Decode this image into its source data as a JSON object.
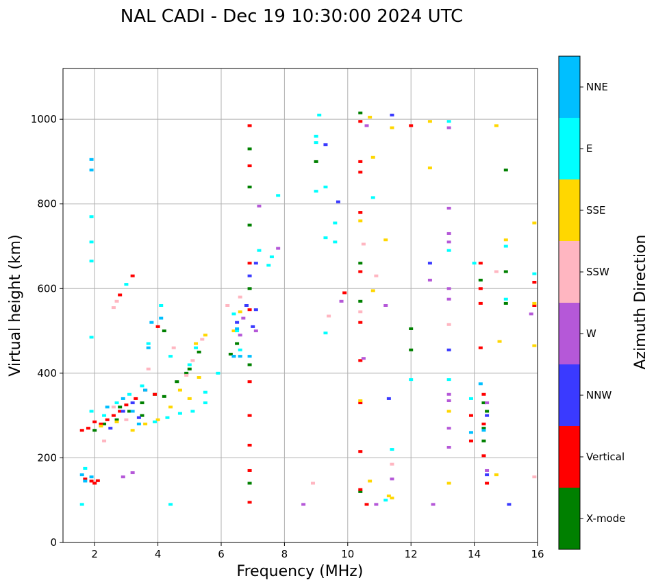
{
  "chart_data": {
    "type": "scatter",
    "title": "NAL CADI - Dec 19 10:30:00 2024 UTC",
    "xlabel": "Frequency (MHz)",
    "ylabel": "Virtual height (km)",
    "xlim": [
      1,
      16
    ],
    "ylim": [
      0,
      1120
    ],
    "xticks": [
      2,
      4,
      6,
      8,
      10,
      12,
      14,
      16
    ],
    "yticks": [
      0,
      200,
      400,
      600,
      800,
      1000
    ],
    "grid": true,
    "colorbar": {
      "label": "Azimuth Direction",
      "categories": [
        {
          "name": "X-mode",
          "color": "#008000"
        },
        {
          "name": "Vertical",
          "color": "#ff0000"
        },
        {
          "name": "NNW",
          "color": "#3a3aff"
        },
        {
          "name": "W",
          "color": "#b558d8"
        },
        {
          "name": "SSW",
          "color": "#ffb6c1"
        },
        {
          "name": "SSE",
          "color": "#ffd700"
        },
        {
          "name": "E",
          "color": "#00ffff"
        },
        {
          "name": "NNE",
          "color": "#00bfff"
        }
      ]
    },
    "series": [
      {
        "name": "X-mode",
        "points": [
          [
            2.7,
            290
          ],
          [
            3.1,
            310
          ],
          [
            3.5,
            330
          ],
          [
            3.9,
            350
          ],
          [
            4.2,
            345
          ],
          [
            4.6,
            380
          ],
          [
            5.0,
            410
          ],
          [
            5.3,
            450
          ],
          [
            2.3,
            280
          ],
          [
            6.3,
            445
          ],
          [
            6.5,
            470
          ],
          [
            6.9,
            840
          ],
          [
            6.9,
            750
          ],
          [
            6.9,
            600
          ],
          [
            6.9,
            420
          ],
          [
            10.4,
            570
          ],
          [
            10.4,
            660
          ],
          [
            10.4,
            120
          ],
          [
            10.4,
            1015
          ],
          [
            9.0,
            900
          ],
          [
            12.0,
            505
          ],
          [
            12.0,
            455
          ],
          [
            14.2,
            620
          ],
          [
            14.3,
            270
          ],
          [
            14.3,
            240
          ],
          [
            14.3,
            330
          ],
          [
            14.4,
            310
          ],
          [
            15.0,
            880
          ],
          [
            15.0,
            565
          ],
          [
            15.0,
            640
          ],
          [
            4.2,
            500
          ],
          [
            3.5,
            300
          ],
          [
            6.9,
            140
          ],
          [
            6.9,
            930
          ],
          [
            2.0,
            265
          ],
          [
            2.8,
            320
          ],
          [
            4.9,
            400
          ]
        ]
      },
      {
        "name": "Vertical",
        "points": [
          [
            1.6,
            265
          ],
          [
            1.8,
            270
          ],
          [
            2.0,
            285
          ],
          [
            2.2,
            280
          ],
          [
            2.4,
            290
          ],
          [
            2.6,
            300
          ],
          [
            2.8,
            310
          ],
          [
            3.0,
            325
          ],
          [
            3.3,
            340
          ],
          [
            3.6,
            360
          ],
          [
            3.9,
            350
          ],
          [
            1.7,
            150
          ],
          [
            1.9,
            145
          ],
          [
            2.0,
            140
          ],
          [
            2.1,
            146
          ],
          [
            2.8,
            585
          ],
          [
            3.2,
            630
          ],
          [
            6.9,
            985
          ],
          [
            6.9,
            890
          ],
          [
            6.9,
            660
          ],
          [
            6.9,
            550
          ],
          [
            6.9,
            380
          ],
          [
            6.9,
            300
          ],
          [
            6.9,
            230
          ],
          [
            6.9,
            170
          ],
          [
            6.9,
            95
          ],
          [
            10.4,
            995
          ],
          [
            10.4,
            900
          ],
          [
            10.4,
            875
          ],
          [
            10.4,
            780
          ],
          [
            10.4,
            640
          ],
          [
            10.4,
            520
          ],
          [
            10.4,
            430
          ],
          [
            10.4,
            330
          ],
          [
            10.4,
            215
          ],
          [
            10.4,
            125
          ],
          [
            10.6,
            90
          ],
          [
            12.0,
            985
          ],
          [
            13.9,
            300
          ],
          [
            13.9,
            240
          ],
          [
            14.2,
            660
          ],
          [
            14.2,
            600
          ],
          [
            14.2,
            565
          ],
          [
            14.2,
            460
          ],
          [
            14.3,
            350
          ],
          [
            14.3,
            280
          ],
          [
            14.3,
            205
          ],
          [
            14.4,
            140
          ],
          [
            15.9,
            615
          ],
          [
            15.9,
            560
          ],
          [
            4.0,
            510
          ],
          [
            9.9,
            590
          ]
        ]
      },
      {
        "name": "NNW",
        "points": [
          [
            2.5,
            270
          ],
          [
            2.9,
            310
          ],
          [
            3.2,
            330
          ],
          [
            3.4,
            295
          ],
          [
            6.5,
            520
          ],
          [
            6.8,
            560
          ],
          [
            7.0,
            510
          ],
          [
            6.9,
            630
          ],
          [
            7.1,
            660
          ],
          [
            9.3,
            940
          ],
          [
            9.7,
            805
          ],
          [
            11.3,
            340
          ],
          [
            11.4,
            1010
          ],
          [
            12.6,
            660
          ],
          [
            13.2,
            455
          ],
          [
            14.4,
            300
          ],
          [
            14.4,
            160
          ],
          [
            15.1,
            90
          ],
          [
            6.4,
            440
          ],
          [
            7.1,
            550
          ]
        ]
      },
      {
        "name": "W",
        "points": [
          [
            6.6,
            490
          ],
          [
            6.7,
            530
          ],
          [
            7.1,
            500
          ],
          [
            7.2,
            795
          ],
          [
            7.8,
            695
          ],
          [
            8.6,
            90
          ],
          [
            9.8,
            570
          ],
          [
            10.5,
            435
          ],
          [
            10.6,
            985
          ],
          [
            10.9,
            90
          ],
          [
            11.2,
            560
          ],
          [
            11.4,
            150
          ],
          [
            12.6,
            620
          ],
          [
            12.7,
            90
          ],
          [
            13.2,
            980
          ],
          [
            13.2,
            790
          ],
          [
            13.2,
            730
          ],
          [
            13.2,
            710
          ],
          [
            13.2,
            600
          ],
          [
            13.2,
            575
          ],
          [
            13.2,
            350
          ],
          [
            13.2,
            335
          ],
          [
            13.2,
            270
          ],
          [
            13.2,
            225
          ],
          [
            14.4,
            330
          ],
          [
            14.4,
            170
          ],
          [
            15.8,
            540
          ],
          [
            3.2,
            165
          ],
          [
            2.9,
            155
          ]
        ]
      },
      {
        "name": "SSW",
        "points": [
          [
            2.3,
            240
          ],
          [
            2.6,
            320
          ],
          [
            3.0,
            290
          ],
          [
            3.7,
            410
          ],
          [
            4.5,
            460
          ],
          [
            4.9,
            395
          ],
          [
            5.1,
            430
          ],
          [
            5.4,
            480
          ],
          [
            6.2,
            560
          ],
          [
            6.6,
            580
          ],
          [
            9.4,
            535
          ],
          [
            10.4,
            545
          ],
          [
            10.5,
            705
          ],
          [
            10.9,
            630
          ],
          [
            11.4,
            185
          ],
          [
            13.2,
            515
          ],
          [
            14.7,
            640
          ],
          [
            15.9,
            155
          ],
          [
            8.9,
            140
          ],
          [
            2.6,
            555
          ],
          [
            2.7,
            570
          ]
        ]
      },
      {
        "name": "SSE",
        "points": [
          [
            2.2,
            275
          ],
          [
            2.7,
            285
          ],
          [
            3.2,
            265
          ],
          [
            3.6,
            280
          ],
          [
            4.0,
            290
          ],
          [
            4.4,
            320
          ],
          [
            4.7,
            360
          ],
          [
            5.0,
            340
          ],
          [
            5.3,
            390
          ],
          [
            5.5,
            490
          ],
          [
            5.2,
            470
          ],
          [
            6.4,
            500
          ],
          [
            6.6,
            545
          ],
          [
            10.4,
            760
          ],
          [
            10.4,
            335
          ],
          [
            10.7,
            1005
          ],
          [
            10.8,
            910
          ],
          [
            10.8,
            595
          ],
          [
            11.2,
            715
          ],
          [
            11.4,
            980
          ],
          [
            11.3,
            110
          ],
          [
            11.4,
            105
          ],
          [
            12.6,
            995
          ],
          [
            12.6,
            885
          ],
          [
            13.2,
            310
          ],
          [
            13.2,
            140
          ],
          [
            14.7,
            985
          ],
          [
            14.7,
            160
          ],
          [
            14.8,
            475
          ],
          [
            15.0,
            715
          ],
          [
            15.9,
            755
          ],
          [
            15.9,
            465
          ],
          [
            15.9,
            565
          ],
          [
            10.7,
            145
          ]
        ]
      },
      {
        "name": "E",
        "points": [
          [
            1.9,
            310
          ],
          [
            2.3,
            300
          ],
          [
            2.7,
            330
          ],
          [
            3.1,
            350
          ],
          [
            3.5,
            370
          ],
          [
            3.9,
            285
          ],
          [
            4.3,
            295
          ],
          [
            4.7,
            305
          ],
          [
            5.1,
            310
          ],
          [
            5.5,
            330
          ],
          [
            5.5,
            355
          ],
          [
            5.0,
            420
          ],
          [
            5.2,
            460
          ],
          [
            5.9,
            400
          ],
          [
            4.1,
            560
          ],
          [
            4.4,
            440
          ],
          [
            3.7,
            470
          ],
          [
            3.0,
            610
          ],
          [
            1.6,
            90
          ],
          [
            1.7,
            175
          ],
          [
            1.9,
            770
          ],
          [
            1.9,
            710
          ],
          [
            1.9,
            665
          ],
          [
            1.9,
            485
          ],
          [
            4.4,
            90
          ],
          [
            6.4,
            540
          ],
          [
            6.5,
            500
          ],
          [
            6.6,
            455
          ],
          [
            7.2,
            690
          ],
          [
            7.5,
            655
          ],
          [
            7.6,
            675
          ],
          [
            7.8,
            820
          ],
          [
            9.0,
            830
          ],
          [
            9.0,
            960
          ],
          [
            9.0,
            945
          ],
          [
            9.3,
            495
          ],
          [
            9.3,
            720
          ],
          [
            9.3,
            840
          ],
          [
            9.6,
            710
          ],
          [
            9.6,
            755
          ],
          [
            10.8,
            815
          ],
          [
            11.4,
            220
          ],
          [
            11.2,
            100
          ],
          [
            12.0,
            385
          ],
          [
            13.2,
            995
          ],
          [
            13.2,
            385
          ],
          [
            13.2,
            690
          ],
          [
            13.9,
            340
          ],
          [
            14.0,
            660
          ],
          [
            15.0,
            700
          ],
          [
            15.0,
            575
          ],
          [
            15.9,
            635
          ],
          [
            9.1,
            1010
          ]
        ]
      },
      {
        "name": "NNE",
        "points": [
          [
            1.6,
            160
          ],
          [
            1.7,
            145
          ],
          [
            1.9,
            155
          ],
          [
            1.9,
            905
          ],
          [
            1.9,
            880
          ],
          [
            2.4,
            320
          ],
          [
            2.9,
            340
          ],
          [
            3.2,
            310
          ],
          [
            3.4,
            280
          ],
          [
            3.6,
            360
          ],
          [
            3.8,
            520
          ],
          [
            3.7,
            460
          ],
          [
            4.1,
            530
          ],
          [
            6.4,
            440
          ],
          [
            6.6,
            440
          ],
          [
            6.5,
            505
          ],
          [
            6.9,
            440
          ],
          [
            13.9,
            260
          ],
          [
            14.3,
            265
          ],
          [
            14.2,
            375
          ]
        ]
      }
    ]
  }
}
